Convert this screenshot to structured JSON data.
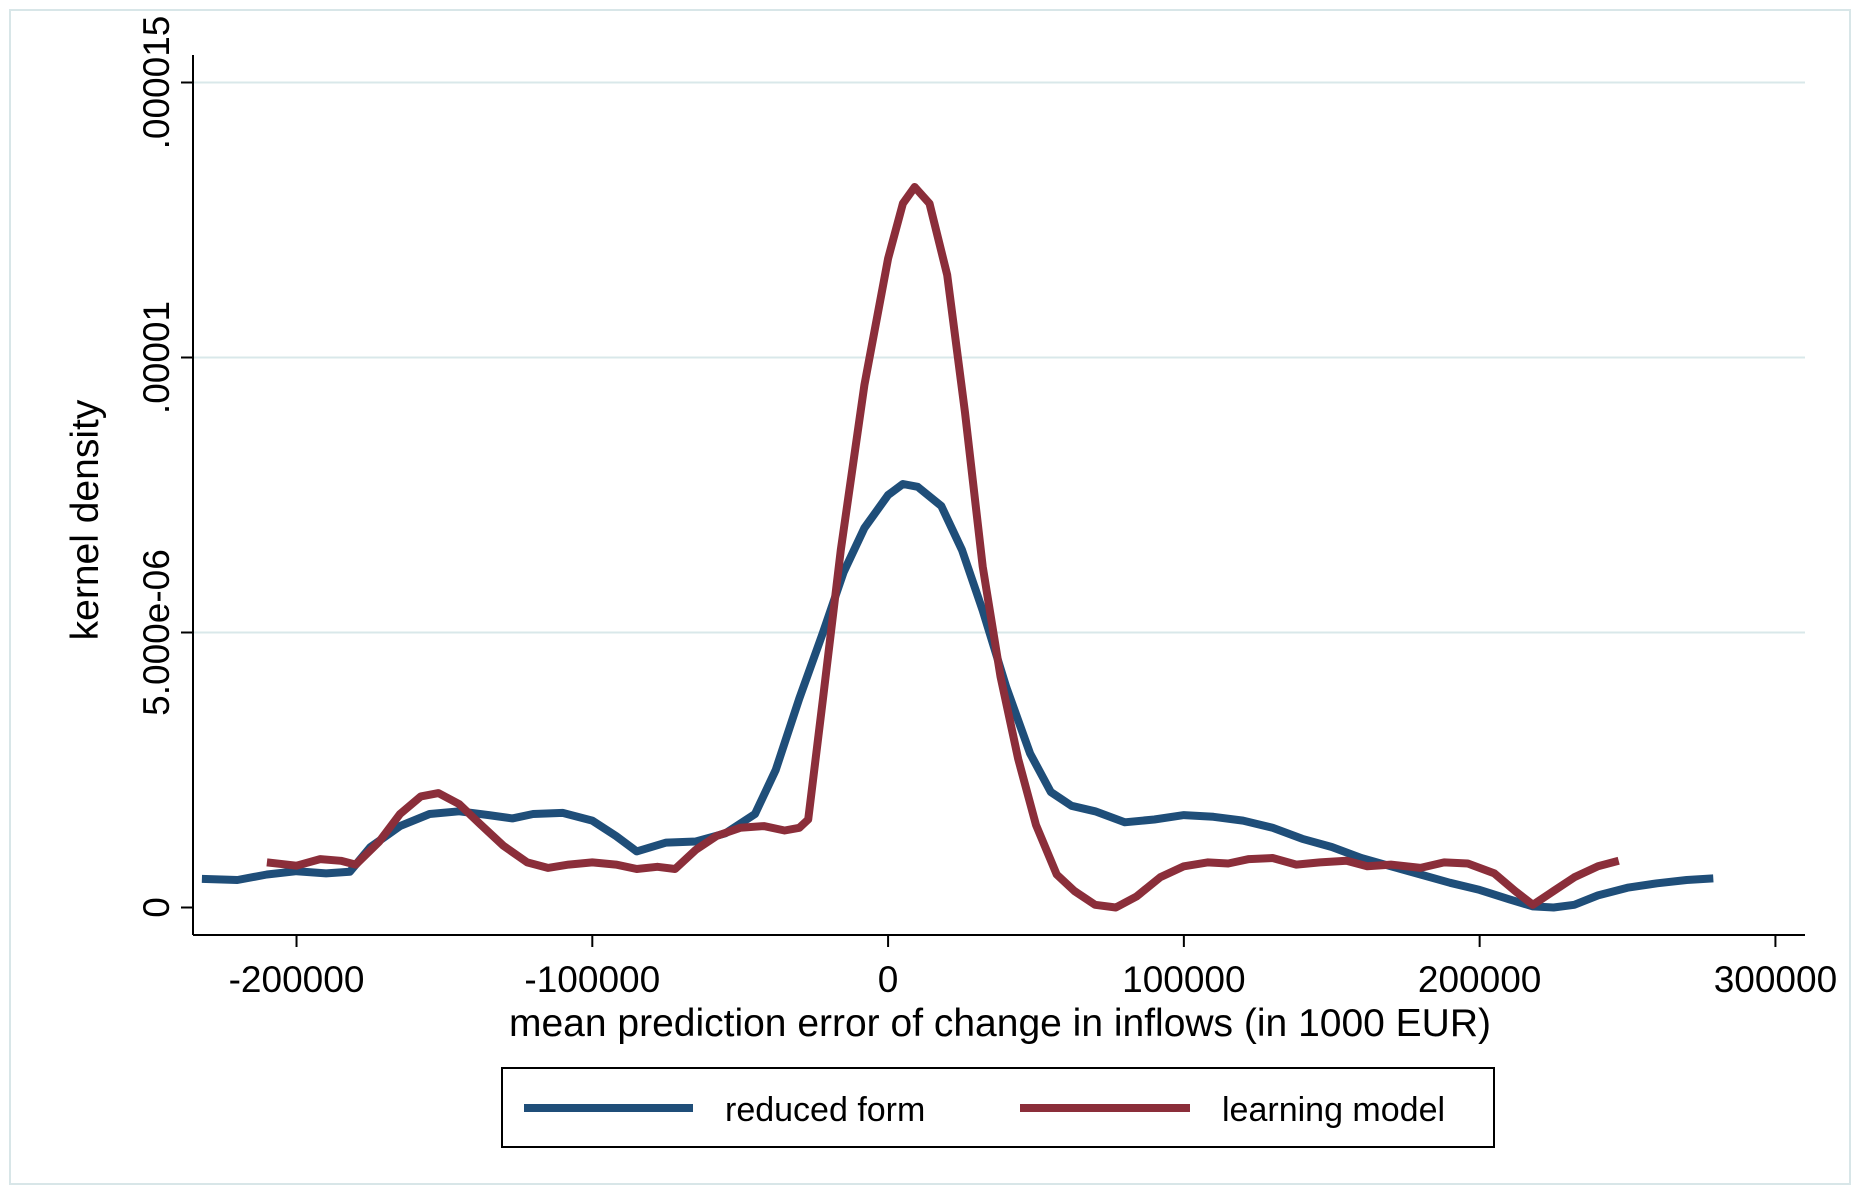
{
  "chart_data": {
    "type": "line",
    "title": "",
    "xlabel": "mean prediction error of change in inflows (in 1000 EUR)",
    "ylabel": "kernel density",
    "xlim": [
      -235000,
      310000
    ],
    "ylim": [
      -5e-07,
      1.55e-05
    ],
    "x_ticks": [
      -200000,
      -100000,
      0,
      100000,
      200000,
      300000
    ],
    "x_tick_labels": [
      "-200000",
      "-100000",
      "0",
      "100000",
      "200000",
      "300000"
    ],
    "y_ticks": [
      0,
      5e-06,
      1e-05,
      1.5e-05
    ],
    "y_tick_labels": [
      "0",
      "5.000e-06",
      ".00001",
      ".000015"
    ],
    "grid": "horizontal",
    "legend_position": "bottom",
    "series": [
      {
        "name": "reduced form",
        "color": "#1f4e79",
        "points": [
          [
            -232000,
            5.2e-07
          ],
          [
            -220000,
            5e-07
          ],
          [
            -210000,
            6e-07
          ],
          [
            -200000,
            6.6e-07
          ],
          [
            -190000,
            6.2e-07
          ],
          [
            -182000,
            6.5e-07
          ],
          [
            -175000,
            1.1e-06
          ],
          [
            -165000,
            1.48e-06
          ],
          [
            -155000,
            1.7e-06
          ],
          [
            -145000,
            1.75e-06
          ],
          [
            -135000,
            1.68e-06
          ],
          [
            -127000,
            1.62e-06
          ],
          [
            -120000,
            1.7e-06
          ],
          [
            -110000,
            1.72e-06
          ],
          [
            -100000,
            1.58e-06
          ],
          [
            -92000,
            1.3e-06
          ],
          [
            -85000,
            1.02e-06
          ],
          [
            -75000,
            1.18e-06
          ],
          [
            -65000,
            1.2e-06
          ],
          [
            -55000,
            1.35e-06
          ],
          [
            -45000,
            1.7e-06
          ],
          [
            -38000,
            2.5e-06
          ],
          [
            -30000,
            3.8e-06
          ],
          [
            -22000,
            5e-06
          ],
          [
            -15000,
            6.1e-06
          ],
          [
            -8000,
            6.9e-06
          ],
          [
            0,
            7.5e-06
          ],
          [
            5000,
            7.7e-06
          ],
          [
            10000,
            7.65e-06
          ],
          [
            18000,
            7.3e-06
          ],
          [
            25000,
            6.5e-06
          ],
          [
            32000,
            5.4e-06
          ],
          [
            40000,
            4e-06
          ],
          [
            48000,
            2.8e-06
          ],
          [
            55000,
            2.1e-06
          ],
          [
            62000,
            1.85e-06
          ],
          [
            70000,
            1.75e-06
          ],
          [
            80000,
            1.55e-06
          ],
          [
            90000,
            1.6e-06
          ],
          [
            100000,
            1.68e-06
          ],
          [
            110000,
            1.65e-06
          ],
          [
            120000,
            1.58e-06
          ],
          [
            130000,
            1.45e-06
          ],
          [
            140000,
            1.25e-06
          ],
          [
            150000,
            1.1e-06
          ],
          [
            160000,
            9e-07
          ],
          [
            170000,
            7.5e-07
          ],
          [
            180000,
            6e-07
          ],
          [
            190000,
            4.5e-07
          ],
          [
            200000,
            3.2e-07
          ],
          [
            210000,
            1.5e-07
          ],
          [
            218000,
            2e-08
          ],
          [
            225000,
            0.0
          ],
          [
            232000,
            5e-08
          ],
          [
            240000,
            2.2e-07
          ],
          [
            250000,
            3.6e-07
          ],
          [
            260000,
            4.4e-07
          ],
          [
            270000,
            5e-07
          ],
          [
            279000,
            5.3e-07
          ]
        ]
      },
      {
        "name": "learning model",
        "color": "#8b2e3a",
        "points": [
          [
            -210000,
            8.2e-07
          ],
          [
            -200000,
            7.6e-07
          ],
          [
            -192000,
            8.8e-07
          ],
          [
            -185000,
            8.5e-07
          ],
          [
            -180000,
            7.8e-07
          ],
          [
            -172000,
            1.2e-06
          ],
          [
            -165000,
            1.7e-06
          ],
          [
            -158000,
            2.02e-06
          ],
          [
            -152000,
            2.08e-06
          ],
          [
            -145000,
            1.88e-06
          ],
          [
            -138000,
            1.52e-06
          ],
          [
            -130000,
            1.12e-06
          ],
          [
            -122000,
            8.2e-07
          ],
          [
            -115000,
            7.2e-07
          ],
          [
            -108000,
            7.8e-07
          ],
          [
            -100000,
            8.2e-07
          ],
          [
            -92000,
            7.8e-07
          ],
          [
            -85000,
            7e-07
          ],
          [
            -78000,
            7.4e-07
          ],
          [
            -72000,
            7e-07
          ],
          [
            -65000,
            1.05e-06
          ],
          [
            -58000,
            1.3e-06
          ],
          [
            -50000,
            1.45e-06
          ],
          [
            -42000,
            1.48e-06
          ],
          [
            -35000,
            1.4e-06
          ],
          [
            -30000,
            1.45e-06
          ],
          [
            -27000,
            1.6e-06
          ],
          [
            -22000,
            3.8e-06
          ],
          [
            -16000,
            6.5e-06
          ],
          [
            -8000,
            9.5e-06
          ],
          [
            0,
            1.18e-05
          ],
          [
            5000,
            1.28e-05
          ],
          [
            9000,
            1.31e-05
          ],
          [
            14000,
            1.28e-05
          ],
          [
            20000,
            1.15e-05
          ],
          [
            26000,
            9e-06
          ],
          [
            32000,
            6.2e-06
          ],
          [
            38000,
            4.2e-06
          ],
          [
            44000,
            2.7e-06
          ],
          [
            50000,
            1.5e-06
          ],
          [
            57000,
            6e-07
          ],
          [
            63000,
            3e-07
          ],
          [
            70000,
            5e-08
          ],
          [
            77000,
            0.0
          ],
          [
            84000,
            2e-07
          ],
          [
            92000,
            5.5e-07
          ],
          [
            100000,
            7.5e-07
          ],
          [
            108000,
            8.2e-07
          ],
          [
            115000,
            8e-07
          ],
          [
            122000,
            8.8e-07
          ],
          [
            130000,
            9e-07
          ],
          [
            138000,
            7.8e-07
          ],
          [
            146000,
            8.2e-07
          ],
          [
            155000,
            8.5e-07
          ],
          [
            162000,
            7.5e-07
          ],
          [
            170000,
            7.8e-07
          ],
          [
            180000,
            7.2e-07
          ],
          [
            188000,
            8.2e-07
          ],
          [
            196000,
            8e-07
          ],
          [
            205000,
            6.2e-07
          ],
          [
            212000,
            3e-07
          ],
          [
            218000,
            5e-08
          ],
          [
            225000,
            3e-07
          ],
          [
            232000,
            5.5e-07
          ],
          [
            240000,
            7.5e-07
          ],
          [
            247000,
            8.5e-07
          ]
        ]
      }
    ]
  }
}
